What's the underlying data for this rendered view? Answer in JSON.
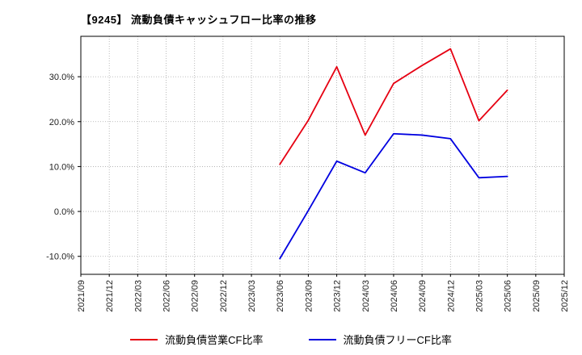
{
  "title": "【9245】 流動負債キャッシュフロー比率の推移",
  "chart_data": {
    "type": "line",
    "title": "【9245】 流動負債キャッシュフロー比率の推移",
    "categories": [
      "2021/09",
      "2021/12",
      "2022/03",
      "2022/06",
      "2022/09",
      "2022/12",
      "2023/03",
      "2023/06",
      "2023/09",
      "2023/12",
      "2024/03",
      "2024/06",
      "2024/09",
      "2024/12",
      "2025/03",
      "2025/06",
      "2025/09",
      "2025/12"
    ],
    "series": [
      {
        "name": "流動負債営業CF比率",
        "color": "#e60012",
        "values": [
          null,
          null,
          null,
          null,
          null,
          null,
          null,
          10.5,
          20.3,
          32.2,
          17.0,
          28.5,
          32.5,
          36.2,
          20.2,
          27.0,
          null,
          null
        ]
      },
      {
        "name": "流動負債フリーCF比率",
        "color": "#0000e0",
        "values": [
          null,
          null,
          null,
          null,
          null,
          null,
          null,
          -10.5,
          0.2,
          11.2,
          8.6,
          17.3,
          17.0,
          16.2,
          7.5,
          7.8,
          null,
          null
        ]
      }
    ],
    "ylim": [
      -14,
      39
    ],
    "yticks": [
      -10,
      0,
      10,
      20,
      30
    ],
    "ytick_labels": [
      "-10.0%",
      "0.0%",
      "10.0%",
      "20.0%",
      "30.0%"
    ],
    "xlabel": "",
    "ylabel": "",
    "grid": true,
    "grid_style": "dotted",
    "legend_position": "bottom"
  }
}
